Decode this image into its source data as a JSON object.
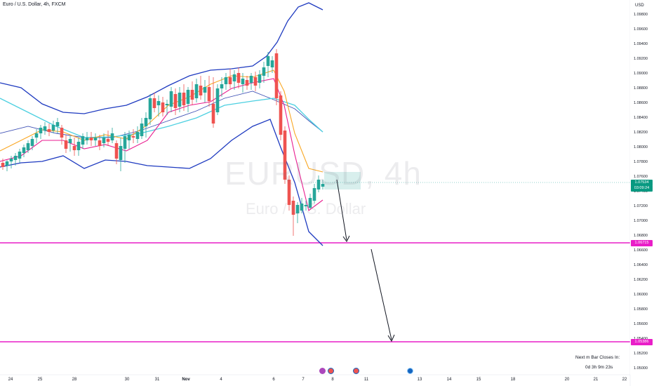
{
  "header": {
    "symbol_title": "Euro / U.S. Dollar, 4h, FXCM"
  },
  "watermark": {
    "symbol": "EURUSD, 4h",
    "description": "Euro / U.S. Dollar"
  },
  "price_axis": {
    "currency": "USD",
    "ticks": [
      "1.09800",
      "1.09600",
      "1.09400",
      "1.09200",
      "1.09000",
      "1.08800",
      "1.08600",
      "1.08400",
      "1.08200",
      "1.08000",
      "1.07800",
      "1.07600",
      "1.07400",
      "1.07200",
      "1.07000",
      "1.06800",
      "1.06600",
      "1.06400",
      "1.06200",
      "1.06000",
      "1.05800",
      "1.05600",
      "1.05400",
      "1.05200",
      "1.05000"
    ],
    "current_price": "1.07534",
    "countdown_tag": "03:09:24",
    "line_tag_1": "1.06715",
    "line_tag_2": "1.05386"
  },
  "time_axis": {
    "labels": [
      "24",
      "25",
      "28",
      "30",
      "31",
      "Nov",
      "4",
      "6",
      "7",
      "8",
      "11",
      "13",
      "14",
      "15",
      "18",
      "20",
      "21",
      "22"
    ]
  },
  "footer": {
    "next_bar_label": "Next m Bar Closes In:",
    "countdown": "0d 3h 9m 23s"
  },
  "colors": {
    "bull": "#26a69a",
    "bear": "#ef5350",
    "line": "#e040fb",
    "bollinger": "#1e3ac0",
    "ema_fast": "#f9a825",
    "ema_mid": "#e91e90",
    "ema_slow": "#4db6ac",
    "axis_tag_green": "#089981"
  },
  "event_icons": [
    "flash-icon",
    "us-flag-icon",
    "us-flag-icon",
    "globe-icon"
  ]
}
